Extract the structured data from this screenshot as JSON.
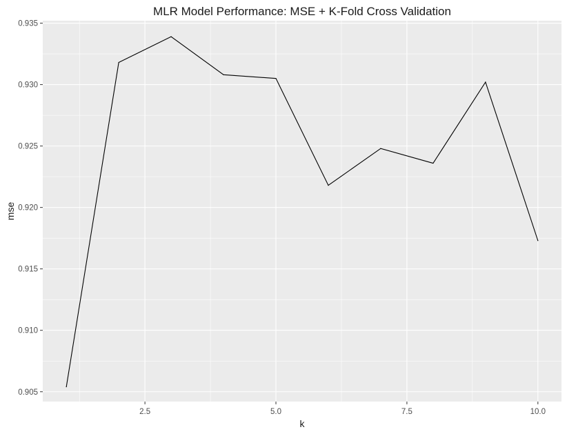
{
  "chart_data": {
    "type": "line",
    "title": "MLR Model Performance: MSE + K-Fold Cross Validation",
    "xlabel": "k",
    "ylabel": "mse",
    "xlim": [
      0.55,
      10.45
    ],
    "ylim": [
      0.9042,
      0.9352
    ],
    "x_ticks": [
      2.5,
      5.0,
      7.5,
      10.0
    ],
    "x_tick_labels": [
      "2.5",
      "5.0",
      "7.5",
      "10.0"
    ],
    "y_ticks": [
      0.905,
      0.91,
      0.915,
      0.92,
      0.925,
      0.93,
      0.935
    ],
    "y_tick_labels": [
      "0.905",
      "0.910",
      "0.915",
      "0.920",
      "0.925",
      "0.930",
      "0.935"
    ],
    "grid": true,
    "series": [
      {
        "x": [
          1,
          2,
          3,
          4,
          5,
          6,
          7,
          8,
          9,
          10
        ],
        "values": [
          0.9054,
          0.9318,
          0.9339,
          0.9308,
          0.9305,
          0.9218,
          0.9248,
          0.9236,
          0.9302,
          0.9173
        ],
        "color": "#000000"
      }
    ],
    "colors": {
      "panel": "#ebebeb",
      "grid": "#ffffff",
      "line": "#000000"
    }
  }
}
